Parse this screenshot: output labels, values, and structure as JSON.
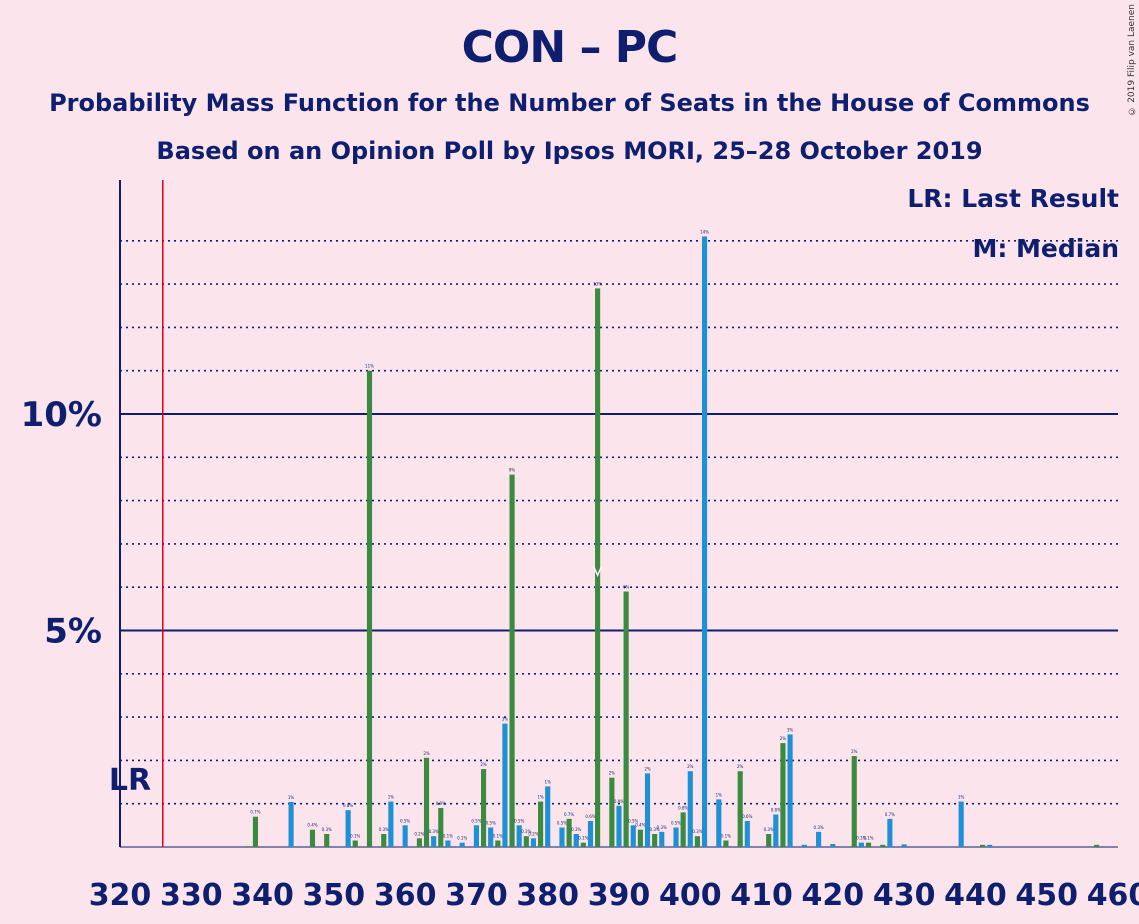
{
  "title": "CON – PC",
  "subtitle1": "Probability Mass Function for the Number of Seats in the House of Commons",
  "subtitle2": "Based on an Opinion Poll by Ipsos MORI, 25–28 October 2019",
  "copyright": "© 2019 Filip van Laenen",
  "legend": {
    "lr": "LR: Last Result",
    "median": "M: Median"
  },
  "chart_data": {
    "type": "bar",
    "xlabel": "",
    "ylabel": "",
    "x_tick_labels": [
      "320",
      "330",
      "340",
      "350",
      "360",
      "370",
      "380",
      "390",
      "400",
      "410",
      "420",
      "430",
      "440",
      "450",
      "460"
    ],
    "y_tick_labels": [
      "5%",
      "10%"
    ],
    "ylim": [
      0,
      15
    ],
    "xlim": [
      320,
      460
    ],
    "last_result": {
      "seat": 326,
      "label": "LR"
    },
    "median": {
      "seat": 387,
      "label": "M"
    },
    "colors": {
      "green": "#3A8A3F",
      "blue": "#1E90D6",
      "lr_line": "#E0001A",
      "axis": "#0D1F6E"
    },
    "bars": [
      {
        "seat": 338,
        "value": 0.02,
        "color": "green"
      },
      {
        "seat": 339,
        "value": 0.7,
        "color": "green"
      },
      {
        "seat": 344,
        "value": 1.04,
        "color": "blue"
      },
      {
        "seat": 347,
        "value": 0.4,
        "color": "green"
      },
      {
        "seat": 349,
        "value": 0.3,
        "color": "green"
      },
      {
        "seat": 352,
        "value": 0.85,
        "color": "blue"
      },
      {
        "seat": 353,
        "value": 0.15,
        "color": "green"
      },
      {
        "seat": 355,
        "value": 11.0,
        "color": "green"
      },
      {
        "seat": 357,
        "value": 0.3,
        "color": "green"
      },
      {
        "seat": 358,
        "value": 1.05,
        "color": "blue"
      },
      {
        "seat": 360,
        "value": 0.5,
        "color": "blue"
      },
      {
        "seat": 362,
        "value": 0.2,
        "color": "green"
      },
      {
        "seat": 363,
        "value": 2.06,
        "color": "green"
      },
      {
        "seat": 364,
        "value": 0.25,
        "color": "blue"
      },
      {
        "seat": 365,
        "value": 0.9,
        "color": "green"
      },
      {
        "seat": 366,
        "value": 0.15,
        "color": "blue"
      },
      {
        "seat": 368,
        "value": 0.1,
        "color": "blue"
      },
      {
        "seat": 370,
        "value": 0.5,
        "color": "blue"
      },
      {
        "seat": 371,
        "value": 1.8,
        "color": "green"
      },
      {
        "seat": 372,
        "value": 0.45,
        "color": "blue"
      },
      {
        "seat": 373,
        "value": 0.15,
        "color": "green"
      },
      {
        "seat": 374,
        "value": 2.85,
        "color": "blue"
      },
      {
        "seat": 375,
        "value": 8.6,
        "color": "green"
      },
      {
        "seat": 376,
        "value": 0.5,
        "color": "blue"
      },
      {
        "seat": 377,
        "value": 0.25,
        "color": "green"
      },
      {
        "seat": 378,
        "value": 0.2,
        "color": "blue"
      },
      {
        "seat": 379,
        "value": 1.05,
        "color": "green"
      },
      {
        "seat": 380,
        "value": 1.4,
        "color": "blue"
      },
      {
        "seat": 382,
        "value": 0.45,
        "color": "blue"
      },
      {
        "seat": 383,
        "value": 0.65,
        "color": "green"
      },
      {
        "seat": 384,
        "value": 0.3,
        "color": "blue"
      },
      {
        "seat": 385,
        "value": 0.1,
        "color": "green"
      },
      {
        "seat": 386,
        "value": 0.6,
        "color": "blue"
      },
      {
        "seat": 387,
        "value": 12.9,
        "color": "green"
      },
      {
        "seat": 389,
        "value": 1.6,
        "color": "green"
      },
      {
        "seat": 390,
        "value": 0.95,
        "color": "blue"
      },
      {
        "seat": 391,
        "value": 5.9,
        "color": "green"
      },
      {
        "seat": 392,
        "value": 0.5,
        "color": "blue"
      },
      {
        "seat": 393,
        "value": 0.4,
        "color": "green"
      },
      {
        "seat": 394,
        "value": 1.7,
        "color": "blue"
      },
      {
        "seat": 395,
        "value": 0.3,
        "color": "green"
      },
      {
        "seat": 396,
        "value": 0.35,
        "color": "blue"
      },
      {
        "seat": 398,
        "value": 0.45,
        "color": "blue"
      },
      {
        "seat": 399,
        "value": 0.8,
        "color": "green"
      },
      {
        "seat": 400,
        "value": 1.75,
        "color": "blue"
      },
      {
        "seat": 401,
        "value": 0.25,
        "color": "green"
      },
      {
        "seat": 402,
        "value": 14.1,
        "color": "blue"
      },
      {
        "seat": 404,
        "value": 1.1,
        "color": "blue"
      },
      {
        "seat": 405,
        "value": 0.15,
        "color": "green"
      },
      {
        "seat": 407,
        "value": 1.75,
        "color": "green"
      },
      {
        "seat": 408,
        "value": 0.6,
        "color": "blue"
      },
      {
        "seat": 411,
        "value": 0.3,
        "color": "green"
      },
      {
        "seat": 412,
        "value": 0.75,
        "color": "blue"
      },
      {
        "seat": 413,
        "value": 2.4,
        "color": "green"
      },
      {
        "seat": 414,
        "value": 2.6,
        "color": "blue"
      },
      {
        "seat": 416,
        "value": 0.05,
        "color": "blue"
      },
      {
        "seat": 418,
        "value": 0.35,
        "color": "blue"
      },
      {
        "seat": 420,
        "value": 0.07,
        "color": "blue"
      },
      {
        "seat": 423,
        "value": 2.1,
        "color": "green"
      },
      {
        "seat": 424,
        "value": 0.1,
        "color": "blue"
      },
      {
        "seat": 425,
        "value": 0.1,
        "color": "green"
      },
      {
        "seat": 427,
        "value": 0.05,
        "color": "green"
      },
      {
        "seat": 428,
        "value": 0.65,
        "color": "blue"
      },
      {
        "seat": 430,
        "value": 0.06,
        "color": "blue"
      },
      {
        "seat": 438,
        "value": 1.05,
        "color": "blue"
      },
      {
        "seat": 441,
        "value": 0.05,
        "color": "green"
      },
      {
        "seat": 442,
        "value": 0.05,
        "color": "blue"
      },
      {
        "seat": 457,
        "value": 0.05,
        "color": "green"
      }
    ]
  }
}
